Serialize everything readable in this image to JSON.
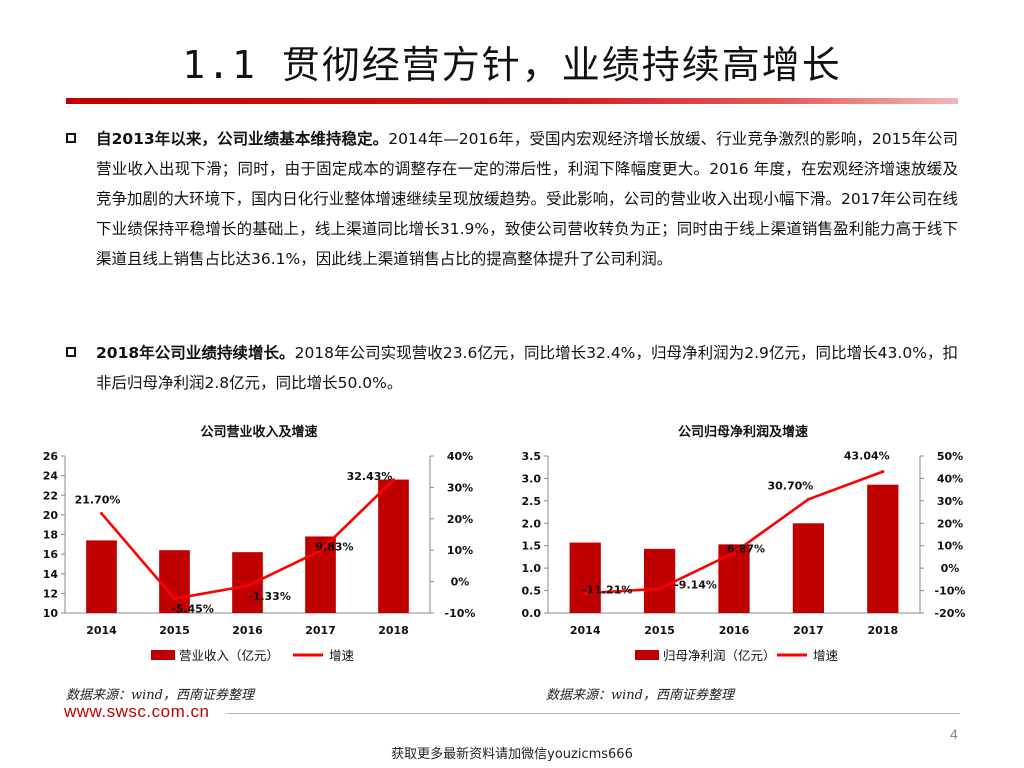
{
  "title": "1.1 贯彻经营方针，业绩持续高增长",
  "bullets": [
    {
      "lead": "自2013年以来，公司业绩基本维持稳定。",
      "text": "2014年—2016年，受国内宏观经济增长放缓、行业竞争激烈的影响，2015年公司营业收入出现下滑；同时，由于固定成本的调整存在一定的滞后性，利润下降幅度更大。2016 年度，在宏观经济增速放缓及竞争加剧的大环境下，国内日化行业整体增速继续呈现放缓趋势。受此影响，公司的营业收入出现小幅下滑。2017年公司在线下业绩保持平稳增长的基础上，线上渠道同比增长31.9%，致使公司营收转负为正；同时由于线上渠道销售盈利能力高于线下渠道且线上销售占比达36.1%，因此线上渠道销售占比的提高整体提升了公司利润。"
    },
    {
      "lead": "2018年公司业绩持续增长。",
      "text": "2018年公司实现营收23.6亿元，同比增长32.4%，归母净利润为2.9亿元，同比增长43.0%，扣非后归母净利润2.8亿元，同比增长50.0%。"
    }
  ],
  "chart_data": [
    {
      "type": "bar",
      "title": "公司营业收入及增速",
      "categories": [
        "2014",
        "2015",
        "2016",
        "2017",
        "2018"
      ],
      "series": [
        {
          "name": "营业收入（亿元）",
          "kind": "bar",
          "axis": "left",
          "values": [
            17.4,
            16.4,
            16.2,
            17.8,
            23.6
          ]
        },
        {
          "name": "增速",
          "kind": "line",
          "axis": "right",
          "values": [
            21.7,
            -5.45,
            -1.33,
            9.83,
            32.43
          ]
        }
      ],
      "labels": [
        "21.70%",
        "-5.45%",
        "-1.33%",
        "9.83%",
        "32.43%"
      ],
      "ylim_left": [
        10,
        26
      ],
      "yticks_left": [
        "10",
        "12",
        "14",
        "16",
        "18",
        "20",
        "22",
        "24",
        "26"
      ],
      "ylim_right": [
        -10,
        40
      ],
      "yticks_right": [
        "-10%",
        "0%",
        "10%",
        "20%",
        "30%",
        "40%"
      ],
      "legend_position": "bottom",
      "colors": {
        "bar": "#c00000",
        "line": "#ff0000"
      }
    },
    {
      "type": "bar",
      "title": "公司归母净利润及增速",
      "categories": [
        "2014",
        "2015",
        "2016",
        "2017",
        "2018"
      ],
      "series": [
        {
          "name": "归母净利润（亿元）",
          "kind": "bar",
          "axis": "left",
          "values": [
            1.57,
            1.43,
            1.53,
            2.0,
            2.86
          ]
        },
        {
          "name": "增速",
          "kind": "line",
          "axis": "right",
          "values": [
            -11.21,
            -9.14,
            6.87,
            30.7,
            43.04
          ]
        }
      ],
      "labels": [
        "-11.21%",
        "-9.14%",
        "6.87%",
        "30.70%",
        "43.04%"
      ],
      "ylim_left": [
        0,
        3.5
      ],
      "yticks_left": [
        "0.0",
        "0.5",
        "1.0",
        "1.5",
        "2.0",
        "2.5",
        "3.0",
        "3.5"
      ],
      "ylim_right": [
        -20,
        50
      ],
      "yticks_right": [
        "-20%",
        "-10%",
        "0%",
        "10%",
        "20%",
        "30%",
        "40%",
        "50%"
      ],
      "legend_position": "bottom",
      "colors": {
        "bar": "#c00000",
        "line": "#ff0000"
      }
    }
  ],
  "sources": [
    "数据来源：wind，西南证券整理",
    "数据来源：wind，西南证券整理"
  ],
  "site": "www.swsc.com.cn",
  "page_number": "4",
  "footer": "获取更多最新资料请加微信youzicms666"
}
